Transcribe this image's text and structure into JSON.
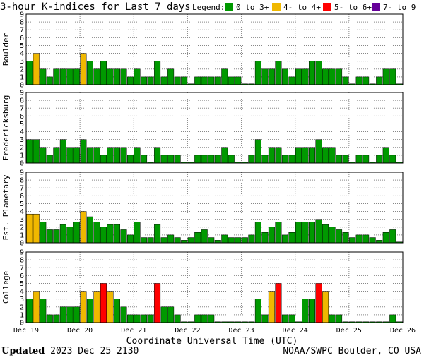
{
  "title": "3-hour K-indices for Last 7 days",
  "legend": {
    "label": "Legend:",
    "entries": [
      {
        "label": "0 to 3+",
        "color": "#009900"
      },
      {
        "label": "4- to 4+",
        "color": "#f0b800"
      },
      {
        "label": "5- to 6+",
        "color": "#ff0000"
      },
      {
        "label": "7- to 9",
        "color": "#660099"
      }
    ]
  },
  "footer": {
    "updated_label": "Updated",
    "updated_value": "2023 Dec 25 2130",
    "source": "NOAA/SWPC Boulder, CO USA"
  },
  "chart_data": [
    {
      "type": "bar",
      "title": "Boulder",
      "ylabel": "Boulder",
      "ylim": [
        0,
        9
      ],
      "yticks": [
        0,
        1,
        2,
        3,
        4,
        5,
        6,
        7,
        8,
        9
      ],
      "xlabel": "Coordinate Universal Time (UTC)",
      "x_ticks": [
        "Dec 19",
        "Dec 20",
        "Dec 21",
        "Dec 22",
        "Dec 23",
        "Dec 24",
        "Dec 25",
        "Dec 26"
      ],
      "grid": true,
      "values": [
        3,
        4,
        2,
        1,
        2,
        2,
        2,
        2,
        4,
        3,
        2,
        3,
        2,
        2,
        2,
        1,
        2,
        1,
        1,
        3,
        1,
        2,
        1,
        1,
        0,
        1,
        1,
        1,
        1,
        2,
        1,
        1,
        0,
        0,
        3,
        2,
        2,
        3,
        2,
        1,
        2,
        2,
        3,
        3,
        2,
        2,
        2,
        1,
        0,
        1,
        1,
        0,
        1,
        2,
        2,
        0
      ]
    },
    {
      "type": "bar",
      "title": "Fredericksburg",
      "ylabel": "Fredericksburg",
      "ylim": [
        0,
        9
      ],
      "yticks": [
        0,
        1,
        2,
        3,
        4,
        5,
        6,
        7,
        8,
        9
      ],
      "grid": true,
      "values": [
        3,
        3,
        2,
        1,
        2,
        3,
        2,
        2,
        3,
        2,
        2,
        1,
        2,
        2,
        2,
        1,
        2,
        1,
        0,
        2,
        1,
        1,
        1,
        0,
        0,
        1,
        1,
        1,
        1,
        2,
        1,
        0,
        0,
        1,
        3,
        1,
        2,
        2,
        1,
        1,
        2,
        2,
        2,
        3,
        2,
        2,
        1,
        1,
        0,
        1,
        1,
        0,
        1,
        2,
        1,
        0
      ]
    },
    {
      "type": "bar",
      "title": "Est. Planetary",
      "ylabel": "Est. Planetary",
      "ylim": [
        0,
        9
      ],
      "yticks": [
        0,
        1,
        2,
        3,
        4,
        5,
        6,
        7,
        8,
        9
      ],
      "grid": true,
      "values": [
        3.67,
        3.67,
        2.67,
        1.67,
        1.67,
        2.33,
        2.0,
        2.67,
        4.0,
        3.33,
        2.67,
        2.0,
        2.33,
        2.33,
        1.67,
        1.0,
        2.67,
        0.67,
        0.67,
        2.33,
        0.67,
        1.0,
        0.67,
        0.33,
        0.67,
        1.33,
        1.67,
        0.67,
        0.33,
        1.0,
        0.67,
        0.67,
        0.67,
        1.0,
        2.67,
        1.33,
        2.0,
        2.67,
        1.0,
        1.33,
        2.67,
        2.67,
        2.67,
        3.0,
        2.33,
        2.0,
        1.67,
        1.33,
        0.67,
        1.0,
        1.0,
        0.67,
        0.33,
        1.33,
        1.67,
        0.0
      ]
    },
    {
      "type": "bar",
      "title": "College",
      "ylabel": "College",
      "ylim": [
        0,
        9
      ],
      "yticks": [
        0,
        1,
        2,
        3,
        4,
        5,
        6,
        7,
        8,
        9
      ],
      "grid": true,
      "values": [
        3,
        4,
        3,
        1,
        1,
        2,
        2,
        2,
        4,
        3,
        4,
        5,
        4,
        3,
        2,
        1,
        1,
        1,
        1,
        5,
        2,
        2,
        1,
        0,
        0,
        1,
        1,
        1,
        0,
        0,
        0,
        0,
        0,
        0,
        3,
        1,
        4,
        5,
        1,
        1,
        0,
        3,
        3,
        5,
        4,
        1,
        1,
        0,
        0,
        0,
        0,
        0,
        0,
        0,
        1,
        0
      ]
    }
  ]
}
